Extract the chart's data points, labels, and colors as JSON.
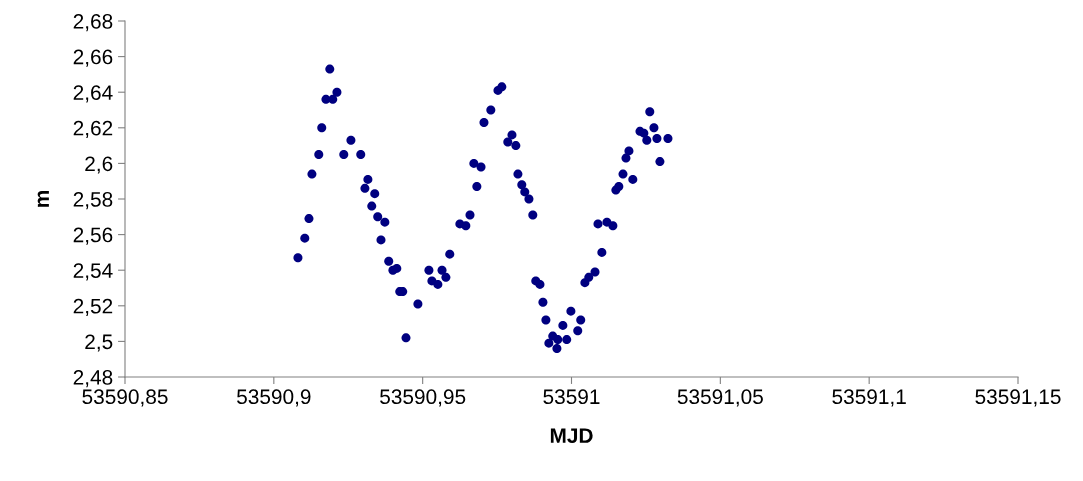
{
  "chart_data": {
    "type": "scatter",
    "xlabel": "MJD",
    "ylabel": "m",
    "marker": "circle",
    "grid": false,
    "legend": false,
    "xlim": [
      53590.85,
      53591.15
    ],
    "xticks": [
      {
        "value": 53590.85,
        "label": "53590,85"
      },
      {
        "value": 53590.9,
        "label": "53590,9"
      },
      {
        "value": 53590.95,
        "label": "53590,95"
      },
      {
        "value": 53591,
        "label": "53591"
      },
      {
        "value": 53591.05,
        "label": "53591,05"
      },
      {
        "value": 53591.1,
        "label": "53591,1"
      },
      {
        "value": 53591.15,
        "label": "53591,15"
      }
    ],
    "ylim": [
      2.48,
      2.68
    ],
    "yticks": [
      {
        "value": 2.48,
        "label": "2,48"
      },
      {
        "value": 2.5,
        "label": "2,5"
      },
      {
        "value": 2.52,
        "label": "2,52"
      },
      {
        "value": 2.54,
        "label": "2,54"
      },
      {
        "value": 2.56,
        "label": "2,56"
      },
      {
        "value": 2.58,
        "label": "2,58"
      },
      {
        "value": 2.6,
        "label": "2,6"
      },
      {
        "value": 2.62,
        "label": "2,62"
      },
      {
        "value": 2.64,
        "label": "2,64"
      },
      {
        "value": 2.66,
        "label": "2,66"
      },
      {
        "value": 2.68,
        "label": "2,68"
      }
    ],
    "series": [
      {
        "color": "#000080",
        "x": [
          53590.9081,
          53590.9104,
          53590.9118,
          53590.9128,
          53590.9151,
          53590.9161,
          53590.9175,
          53590.9188,
          53590.9198,
          53590.9212,
          53590.9235,
          53590.9259,
          53590.9292,
          53590.9306,
          53590.9316,
          53590.9329,
          53590.9339,
          53590.9349,
          53590.936,
          53590.9373,
          53590.9386,
          53590.94,
          53590.9413,
          53590.9423,
          53590.9433,
          53590.9444,
          53590.9484,
          53590.9521,
          53590.9531,
          53590.9551,
          53590.9565,
          53590.9578,
          53590.9591,
          53590.9625,
          53590.9645,
          53590.9659,
          53590.9672,
          53590.9682,
          53590.9696,
          53590.9706,
          53590.9729,
          53590.9753,
          53590.9766,
          53590.9786,
          53590.98,
          53590.9813,
          53590.982,
          53590.9833,
          53590.9843,
          53590.9857,
          53590.987,
          53590.988,
          53590.9894,
          53590.9904,
          53590.9914,
          53590.9924,
          53590.9937,
          53590.9951,
          53590.9954,
          53590.9971,
          53590.9984,
          53590.9998,
          53591.0021,
          53591.0031,
          53591.0045,
          53591.0058,
          53591.0079,
          53591.0089,
          53591.0102,
          53591.0119,
          53591.0139,
          53591.0149,
          53591.0159,
          53591.0173,
          53591.0183,
          53591.0193,
          53591.0206,
          53591.023,
          53591.0243,
          53591.0253,
          53591.0263,
          53591.0277,
          53591.0287,
          53591.0297,
          53591.0324
        ],
        "values": [
          2.547,
          2.558,
          2.569,
          2.594,
          2.605,
          2.62,
          2.636,
          2.653,
          2.636,
          2.64,
          2.605,
          2.613,
          2.605,
          2.586,
          2.591,
          2.576,
          2.583,
          2.57,
          2.557,
          2.567,
          2.545,
          2.54,
          2.541,
          2.528,
          2.528,
          2.502,
          2.521,
          2.54,
          2.534,
          2.532,
          2.54,
          2.536,
          2.549,
          2.566,
          2.565,
          2.571,
          2.6,
          2.587,
          2.598,
          2.623,
          2.63,
          2.641,
          2.643,
          2.612,
          2.616,
          2.61,
          2.594,
          2.588,
          2.584,
          2.58,
          2.571,
          2.534,
          2.532,
          2.522,
          2.512,
          2.499,
          2.503,
          2.496,
          2.501,
          2.509,
          2.501,
          2.517,
          2.506,
          2.512,
          2.533,
          2.536,
          2.539,
          2.566,
          2.55,
          2.567,
          2.565,
          2.585,
          2.587,
          2.594,
          2.603,
          2.607,
          2.591,
          2.618,
          2.617,
          2.613,
          2.629,
          2.62,
          2.614,
          2.601,
          2.614
        ]
      }
    ]
  }
}
